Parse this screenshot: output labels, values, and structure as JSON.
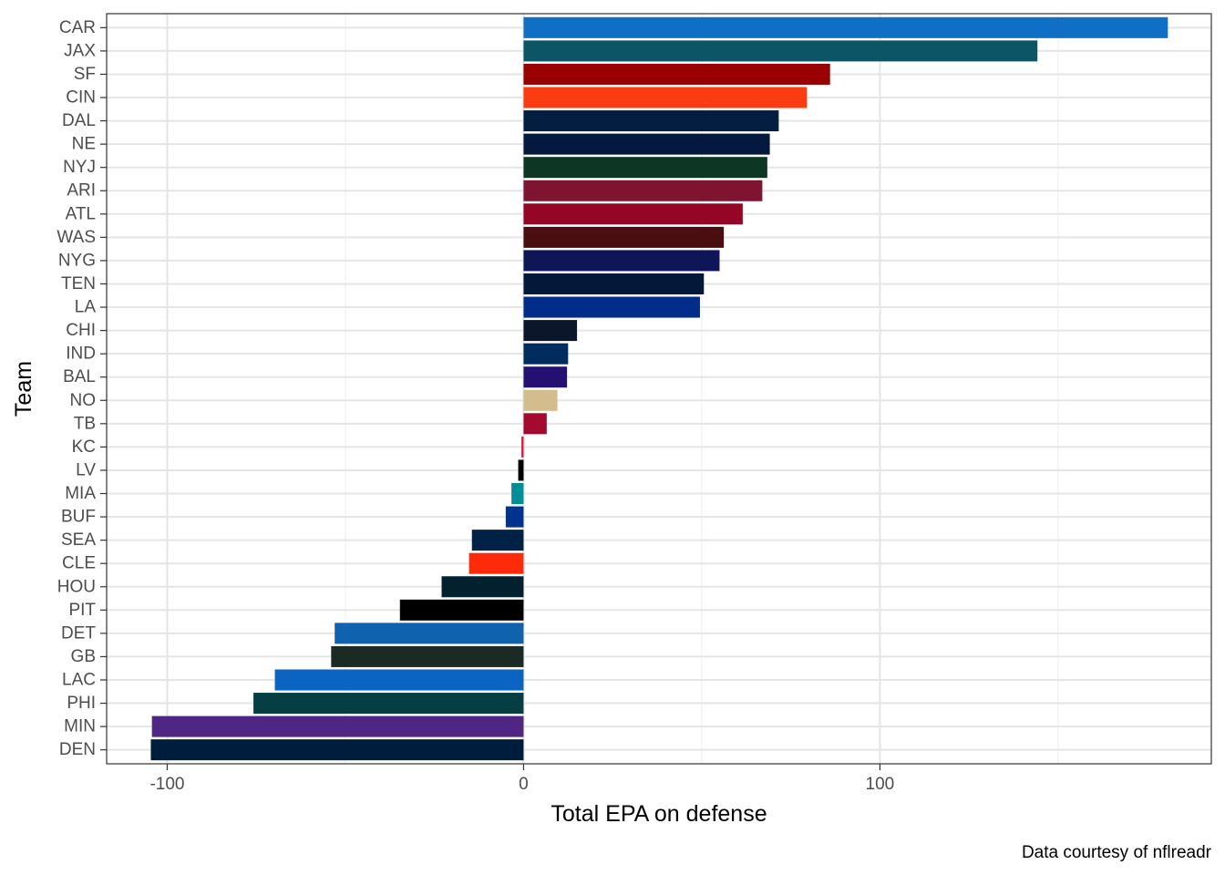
{
  "chart_data": {
    "type": "bar",
    "orientation": "horizontal",
    "xlabel": "Total EPA on defense",
    "ylabel": "Team",
    "caption": "Data courtesy of nflreadr",
    "xlim": [
      -117,
      193
    ],
    "x_ticks": [
      -100,
      0,
      100
    ],
    "x_minor_ticks": [
      -50,
      50,
      150
    ],
    "grid": true,
    "categories": [
      "CAR",
      "JAX",
      "SF",
      "CIN",
      "DAL",
      "NE",
      "NYJ",
      "ARI",
      "ATL",
      "WAS",
      "NYG",
      "TEN",
      "LA",
      "CHI",
      "IND",
      "BAL",
      "NO",
      "TB",
      "KC",
      "LV",
      "MIA",
      "BUF",
      "SEA",
      "CLE",
      "HOU",
      "PIT",
      "DET",
      "GB",
      "LAC",
      "PHI",
      "MIN",
      "DEN"
    ],
    "values": [
      180.8,
      144.2,
      86.0,
      79.5,
      71.6,
      69.1,
      68.4,
      67.0,
      61.5,
      56.2,
      55.0,
      50.6,
      49.5,
      15.0,
      12.5,
      12.2,
      9.5,
      6.5,
      -0.6,
      -1.5,
      -3.4,
      -5.0,
      -14.5,
      -15.3,
      -23.0,
      -34.7,
      -53.0,
      -54.0,
      -69.8,
      -75.8,
      -104.3,
      -104.6
    ],
    "colors": [
      "#0E6FC4",
      "#0B5566",
      "#990000",
      "#FB3C13",
      "#041E42",
      "#031A3E",
      "#0E3625",
      "#7F1431",
      "#950525",
      "#4A0D10",
      "#0E1657",
      "#04193A",
      "#022C89",
      "#0B162A",
      "#002C5F",
      "#241073",
      "#D3BC8D",
      "#A40A2E",
      "#E31837",
      "#000000",
      "#008E97",
      "#00338D",
      "#002244",
      "#FF2A0A",
      "#03202F",
      "#000000",
      "#0E62AE",
      "#1B2B24",
      "#0B64C2",
      "#053F44",
      "#4F2683",
      "#011D3E"
    ]
  }
}
